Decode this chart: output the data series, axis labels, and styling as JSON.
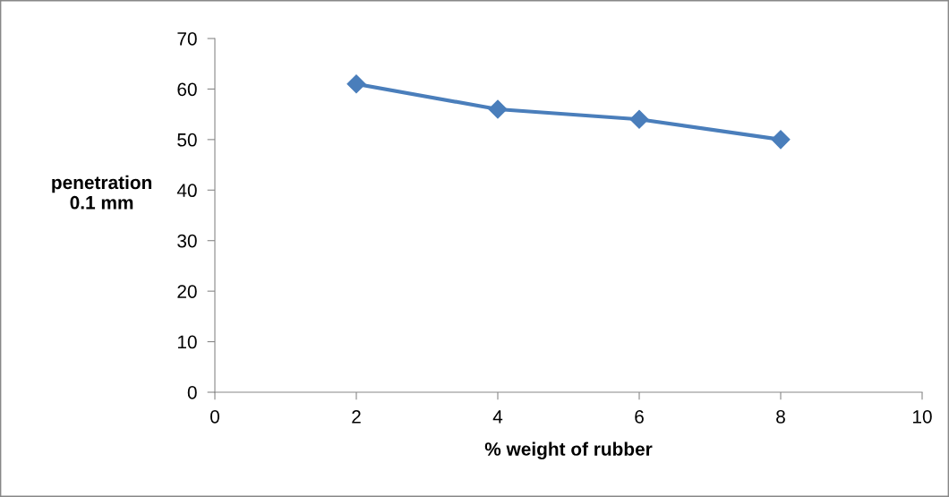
{
  "chart_data": {
    "type": "line",
    "xlabel": "% weight of rubber",
    "ylabel": "penetration\n0.1 mm",
    "x": [
      2,
      4,
      6,
      8
    ],
    "series": [
      {
        "color": "#4a7ebb",
        "values": [
          61,
          56,
          54,
          50
        ]
      }
    ],
    "xlim": [
      0,
      10
    ],
    "xticks": [
      0,
      2,
      4,
      6,
      8,
      10
    ],
    "ylim": [
      0,
      70
    ],
    "yticks": [
      0,
      10,
      20,
      30,
      40,
      50,
      60,
      70
    ],
    "grid": false,
    "legend": false,
    "marker": "diamond",
    "line_style": "solid"
  }
}
